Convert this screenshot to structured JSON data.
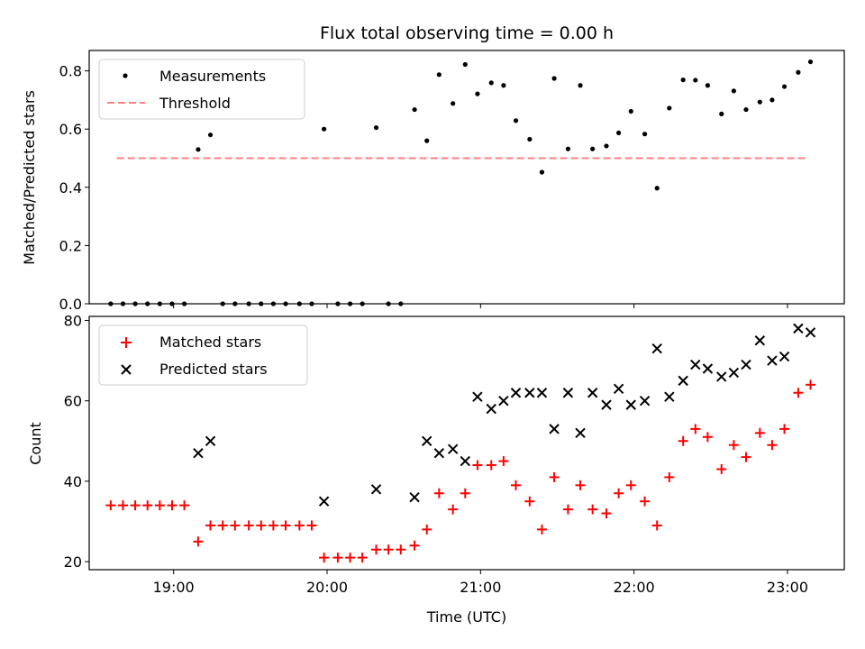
{
  "chart_data": {
    "title": "Flux total observing time = 0.00 h",
    "xlabel": "Time (UTC)",
    "x_ticks": [
      "19:00",
      "20:00",
      "21:00",
      "22:00",
      "23:00"
    ],
    "x_tick_hours": [
      19,
      20,
      21,
      22,
      23
    ],
    "xlim_hours": [
      18.45,
      23.37
    ],
    "panels": [
      {
        "type": "scatter",
        "ylabel": "Matched/Predicted stars",
        "ylim": [
          0,
          0.87
        ],
        "yticks": [
          0.0,
          0.2,
          0.4,
          0.6,
          0.8
        ],
        "ytick_labels": [
          "0.0",
          "0.2",
          "0.4",
          "0.6",
          "0.8"
        ],
        "legend": [
          "Measurements",
          "Threshold"
        ],
        "legend_position": "upper-left",
        "threshold": {
          "name": "Threshold",
          "value": 0.5,
          "x_range_hours": [
            18.63,
            23.12
          ],
          "color": "#ff8080"
        },
        "series": [
          {
            "name": "Measurements",
            "color": "#000000",
            "points": [
              [
                18.59,
                0.0
              ],
              [
                18.67,
                0.0
              ],
              [
                18.75,
                0.0
              ],
              [
                18.83,
                0.0
              ],
              [
                18.91,
                0.0
              ],
              [
                18.99,
                0.0
              ],
              [
                19.07,
                0.0
              ],
              [
                19.16,
                0.53
              ],
              [
                19.24,
                0.58
              ],
              [
                19.32,
                0.0
              ],
              [
                19.4,
                0.0
              ],
              [
                19.49,
                0.0
              ],
              [
                19.57,
                0.0
              ],
              [
                19.65,
                0.0
              ],
              [
                19.73,
                0.0
              ],
              [
                19.82,
                0.0
              ],
              [
                19.9,
                0.0
              ],
              [
                19.98,
                0.6
              ],
              [
                20.07,
                0.0
              ],
              [
                20.15,
                0.0
              ],
              [
                20.23,
                0.0
              ],
              [
                20.32,
                0.605
              ],
              [
                20.4,
                0.0
              ],
              [
                20.48,
                0.0
              ],
              [
                20.57,
                0.667
              ],
              [
                20.65,
                0.56
              ],
              [
                20.73,
                0.787
              ],
              [
                20.82,
                0.688
              ],
              [
                20.9,
                0.822
              ],
              [
                20.98,
                0.721
              ],
              [
                21.07,
                0.759
              ],
              [
                21.15,
                0.75
              ],
              [
                21.23,
                0.629
              ],
              [
                21.32,
                0.565
              ],
              [
                21.4,
                0.452
              ],
              [
                21.48,
                0.774
              ],
              [
                21.57,
                0.532
              ],
              [
                21.65,
                0.75
              ],
              [
                21.73,
                0.532
              ],
              [
                21.82,
                0.542
              ],
              [
                21.9,
                0.587
              ],
              [
                21.98,
                0.661
              ],
              [
                22.07,
                0.583
              ],
              [
                22.15,
                0.397
              ],
              [
                22.23,
                0.672
              ],
              [
                22.32,
                0.769
              ],
              [
                22.4,
                0.768
              ],
              [
                22.48,
                0.75
              ],
              [
                22.57,
                0.652
              ],
              [
                22.65,
                0.731
              ],
              [
                22.73,
                0.667
              ],
              [
                22.82,
                0.693
              ],
              [
                22.9,
                0.7
              ],
              [
                22.98,
                0.746
              ],
              [
                23.07,
                0.795
              ],
              [
                23.15,
                0.831
              ]
            ]
          }
        ]
      },
      {
        "type": "scatter",
        "ylabel": "Count",
        "ylim": [
          18,
          81
        ],
        "yticks": [
          20,
          40,
          60,
          80
        ],
        "ytick_labels": [
          "20",
          "40",
          "60",
          "80"
        ],
        "legend": [
          "Matched stars",
          "Predicted stars"
        ],
        "legend_position": "upper-left",
        "series": [
          {
            "name": "Matched stars",
            "marker": "plus",
            "color": "#ff0000",
            "points": [
              [
                18.59,
                34
              ],
              [
                18.67,
                34
              ],
              [
                18.75,
                34
              ],
              [
                18.83,
                34
              ],
              [
                18.91,
                34
              ],
              [
                18.99,
                34
              ],
              [
                19.07,
                34
              ],
              [
                19.16,
                25
              ],
              [
                19.24,
                29
              ],
              [
                19.32,
                29
              ],
              [
                19.4,
                29
              ],
              [
                19.49,
                29
              ],
              [
                19.57,
                29
              ],
              [
                19.65,
                29
              ],
              [
                19.73,
                29
              ],
              [
                19.82,
                29
              ],
              [
                19.9,
                29
              ],
              [
                19.98,
                21
              ],
              [
                20.07,
                21
              ],
              [
                20.15,
                21
              ],
              [
                20.23,
                21
              ],
              [
                20.32,
                23
              ],
              [
                20.4,
                23
              ],
              [
                20.48,
                23
              ],
              [
                20.57,
                24
              ],
              [
                20.65,
                28
              ],
              [
                20.73,
                37
              ],
              [
                20.82,
                33
              ],
              [
                20.9,
                37
              ],
              [
                20.98,
                44
              ],
              [
                21.07,
                44
              ],
              [
                21.15,
                45
              ],
              [
                21.23,
                39
              ],
              [
                21.32,
                35
              ],
              [
                21.4,
                28
              ],
              [
                21.48,
                41
              ],
              [
                21.57,
                33
              ],
              [
                21.65,
                39
              ],
              [
                21.73,
                33
              ],
              [
                21.82,
                32
              ],
              [
                21.9,
                37
              ],
              [
                21.98,
                39
              ],
              [
                22.07,
                35
              ],
              [
                22.15,
                29
              ],
              [
                22.23,
                41
              ],
              [
                22.32,
                50
              ],
              [
                22.4,
                53
              ],
              [
                22.48,
                51
              ],
              [
                22.57,
                43
              ],
              [
                22.65,
                49
              ],
              [
                22.73,
                46
              ],
              [
                22.82,
                52
              ],
              [
                22.9,
                49
              ],
              [
                22.98,
                53
              ],
              [
                23.07,
                62
              ],
              [
                23.15,
                64
              ]
            ]
          },
          {
            "name": "Predicted stars",
            "marker": "x",
            "color": "#000000",
            "points": [
              [
                19.16,
                47
              ],
              [
                19.24,
                50
              ],
              [
                19.98,
                35
              ],
              [
                20.32,
                38
              ],
              [
                20.57,
                36
              ],
              [
                20.65,
                50
              ],
              [
                20.73,
                47
              ],
              [
                20.82,
                48
              ],
              [
                20.9,
                45
              ],
              [
                20.98,
                61
              ],
              [
                21.07,
                58
              ],
              [
                21.15,
                60
              ],
              [
                21.23,
                62
              ],
              [
                21.32,
                62
              ],
              [
                21.4,
                62
              ],
              [
                21.48,
                53
              ],
              [
                21.57,
                62
              ],
              [
                21.65,
                52
              ],
              [
                21.73,
                62
              ],
              [
                21.82,
                59
              ],
              [
                21.9,
                63
              ],
              [
                21.98,
                59
              ],
              [
                22.07,
                60
              ],
              [
                22.15,
                73
              ],
              [
                22.23,
                61
              ],
              [
                22.32,
                65
              ],
              [
                22.4,
                69
              ],
              [
                22.48,
                68
              ],
              [
                22.57,
                66
              ],
              [
                22.65,
                67
              ],
              [
                22.73,
                69
              ],
              [
                22.82,
                75
              ],
              [
                22.9,
                70
              ],
              [
                22.98,
                71
              ],
              [
                23.07,
                78
              ],
              [
                23.15,
                77
              ]
            ]
          }
        ]
      }
    ]
  }
}
